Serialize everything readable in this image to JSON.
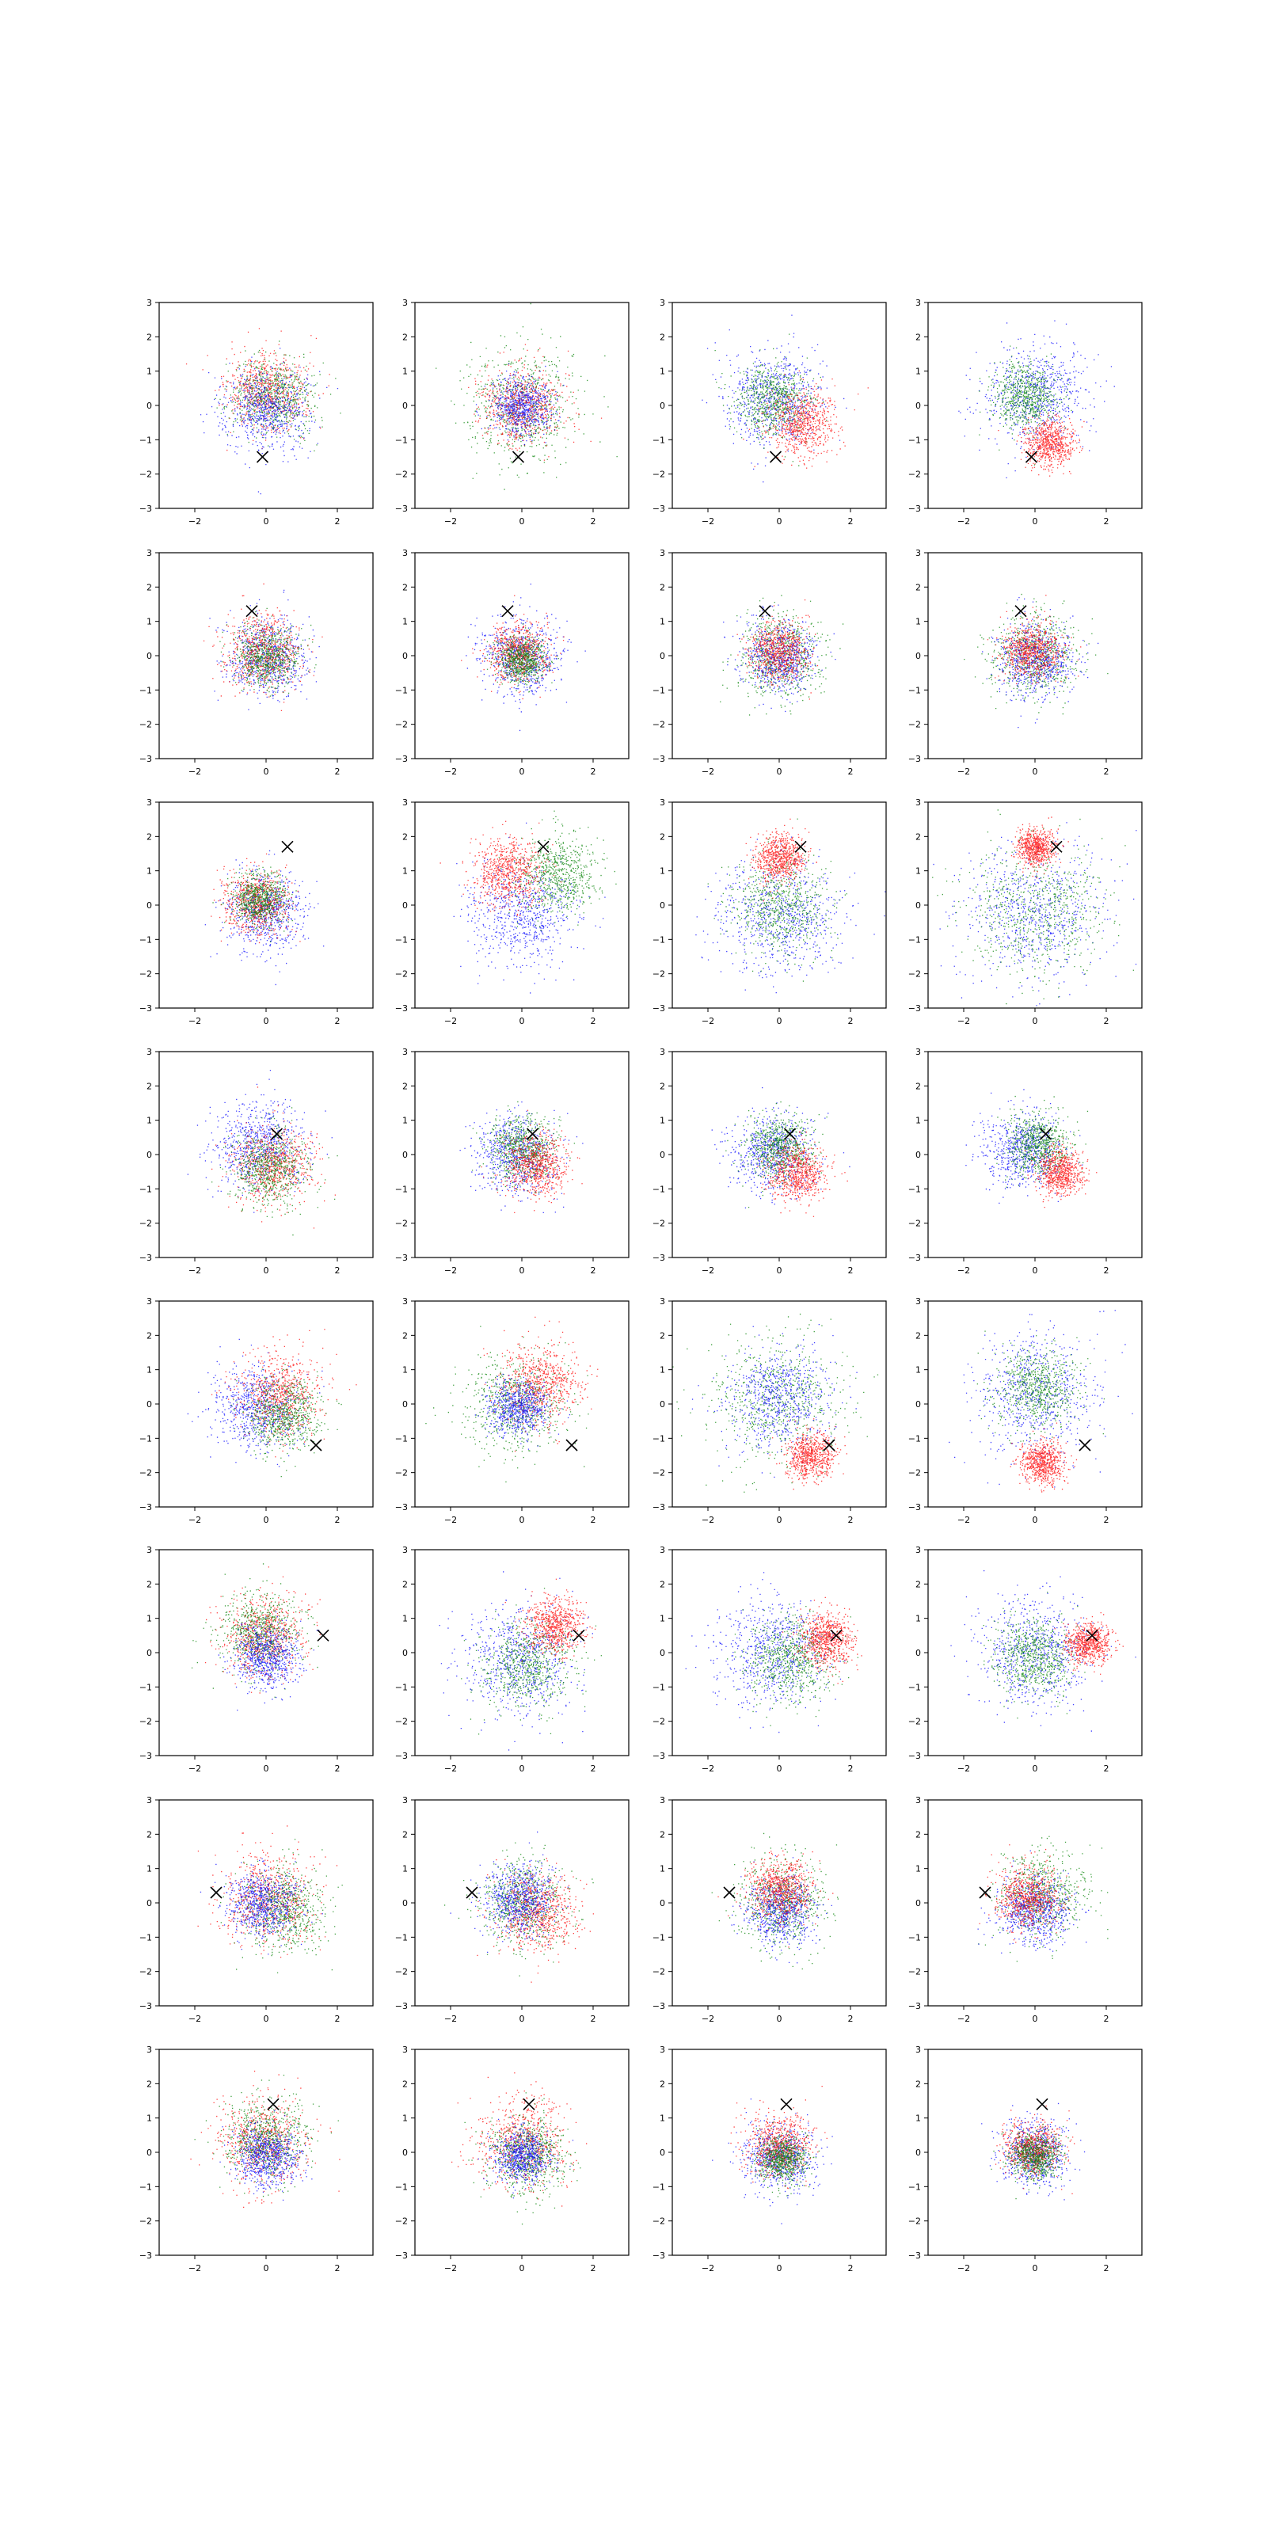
{
  "chart_data": {
    "type": "scatter",
    "layout": {
      "rows": 8,
      "cols": 4
    },
    "xlim": [
      -3,
      3
    ],
    "ylim": [
      -3,
      3
    ],
    "x_ticks": [
      -2,
      0,
      2
    ],
    "y_ticks": [
      -3,
      -2,
      -1,
      0,
      1,
      2,
      3
    ],
    "x_tick_labels": [
      "−2",
      "0",
      "2"
    ],
    "y_tick_labels": [
      "−3",
      "−2",
      "−1",
      "0",
      "1",
      "2",
      "3"
    ],
    "grid": false,
    "colors": {
      "red": "#ff0000",
      "green": "#008000",
      "blue": "#0000ff",
      "marker": "#000000"
    },
    "marker_symbol": "x",
    "rows": [
      {
        "marker": [
          -0.1,
          -1.5
        ],
        "panels": [
          {
            "clusters": [
              {
                "color": "red",
                "cx": 0.0,
                "cy": 0.4,
                "spread": 0.75
              },
              {
                "color": "green",
                "cx": 0.2,
                "cy": 0.3,
                "spread": 0.75
              },
              {
                "color": "blue",
                "cx": 0.0,
                "cy": -0.1,
                "spread": 0.8
              }
            ]
          },
          {
            "clusters": [
              {
                "color": "green",
                "cx": 0.0,
                "cy": 0.0,
                "spread": 1.05
              },
              {
                "color": "red",
                "cx": 0.0,
                "cy": 0.0,
                "spread": 0.75
              },
              {
                "color": "blue",
                "cx": 0.0,
                "cy": 0.0,
                "spread": 0.55
              }
            ]
          },
          {
            "clusters": [
              {
                "color": "blue",
                "cx": -0.2,
                "cy": 0.2,
                "spread": 0.9
              },
              {
                "color": "green",
                "cx": -0.2,
                "cy": 0.2,
                "spread": 0.7
              },
              {
                "color": "red",
                "cx": 0.6,
                "cy": -0.5,
                "spread": 0.65
              }
            ]
          },
          {
            "clusters": [
              {
                "color": "blue",
                "cx": 0.0,
                "cy": 0.3,
                "spread": 0.95
              },
              {
                "color": "green",
                "cx": -0.3,
                "cy": 0.3,
                "spread": 0.6
              },
              {
                "color": "red",
                "cx": 0.4,
                "cy": -1.1,
                "spread": 0.45
              }
            ]
          }
        ]
      },
      {
        "marker": [
          -0.4,
          1.3
        ],
        "panels": [
          {
            "clusters": [
              {
                "color": "blue",
                "cx": 0.0,
                "cy": 0.0,
                "spread": 0.75
              },
              {
                "color": "red",
                "cx": -0.1,
                "cy": 0.1,
                "spread": 0.7
              },
              {
                "color": "green",
                "cx": 0.0,
                "cy": 0.0,
                "spread": 0.6
              }
            ]
          },
          {
            "clusters": [
              {
                "color": "blue",
                "cx": 0.0,
                "cy": 0.0,
                "spread": 0.75
              },
              {
                "color": "red",
                "cx": -0.1,
                "cy": 0.1,
                "spread": 0.55
              },
              {
                "color": "green",
                "cx": 0.0,
                "cy": -0.1,
                "spread": 0.45
              }
            ]
          },
          {
            "clusters": [
              {
                "color": "green",
                "cx": 0.0,
                "cy": 0.0,
                "spread": 0.8
              },
              {
                "color": "blue",
                "cx": 0.0,
                "cy": 0.0,
                "spread": 0.7
              },
              {
                "color": "red",
                "cx": 0.0,
                "cy": 0.1,
                "spread": 0.55
              }
            ]
          },
          {
            "clusters": [
              {
                "color": "green",
                "cx": 0.0,
                "cy": 0.0,
                "spread": 0.8
              },
              {
                "color": "blue",
                "cx": 0.0,
                "cy": -0.1,
                "spread": 0.75
              },
              {
                "color": "red",
                "cx": -0.1,
                "cy": 0.2,
                "spread": 0.55
              }
            ]
          }
        ]
      },
      {
        "marker": [
          0.6,
          1.7
        ],
        "panels": [
          {
            "clusters": [
              {
                "color": "blue",
                "cx": 0.0,
                "cy": -0.2,
                "spread": 0.75
              },
              {
                "color": "red",
                "cx": -0.3,
                "cy": 0.1,
                "spread": 0.6
              },
              {
                "color": "green",
                "cx": -0.2,
                "cy": 0.2,
                "spread": 0.5
              }
            ]
          },
          {
            "clusters": [
              {
                "color": "blue",
                "cx": 0.0,
                "cy": -0.3,
                "spread": 1.0
              },
              {
                "color": "green",
                "cx": 1.0,
                "cy": 0.9,
                "spread": 0.75
              },
              {
                "color": "red",
                "cx": -0.4,
                "cy": 1.0,
                "spread": 0.65
              }
            ]
          },
          {
            "clusters": [
              {
                "color": "blue",
                "cx": 0.0,
                "cy": -0.3,
                "spread": 1.15
              },
              {
                "color": "green",
                "cx": 0.0,
                "cy": 0.0,
                "spread": 0.9
              },
              {
                "color": "red",
                "cx": 0.0,
                "cy": 1.4,
                "spread": 0.45
              }
            ]
          },
          {
            "clusters": [
              {
                "color": "blue",
                "cx": 0.0,
                "cy": -0.2,
                "spread": 1.35
              },
              {
                "color": "green",
                "cx": 0.0,
                "cy": -0.2,
                "spread": 1.3
              },
              {
                "color": "red",
                "cx": 0.0,
                "cy": 1.7,
                "spread": 0.35
              }
            ]
          }
        ]
      },
      {
        "marker": [
          0.3,
          0.6
        ],
        "panels": [
          {
            "clusters": [
              {
                "color": "blue",
                "cx": -0.2,
                "cy": 0.3,
                "spread": 0.85
              },
              {
                "color": "red",
                "cx": 0.2,
                "cy": -0.3,
                "spread": 0.75
              },
              {
                "color": "green",
                "cx": 0.1,
                "cy": -0.4,
                "spread": 0.7
              }
            ]
          },
          {
            "clusters": [
              {
                "color": "blue",
                "cx": -0.2,
                "cy": 0.0,
                "spread": 0.75
              },
              {
                "color": "green",
                "cx": 0.0,
                "cy": 0.2,
                "spread": 0.65
              },
              {
                "color": "red",
                "cx": 0.4,
                "cy": -0.3,
                "spread": 0.6
              }
            ]
          },
          {
            "clusters": [
              {
                "color": "blue",
                "cx": -0.2,
                "cy": 0.1,
                "spread": 0.75
              },
              {
                "color": "green",
                "cx": 0.0,
                "cy": 0.2,
                "spread": 0.6
              },
              {
                "color": "red",
                "cx": 0.5,
                "cy": -0.5,
                "spread": 0.55
              }
            ]
          },
          {
            "clusters": [
              {
                "color": "blue",
                "cx": -0.3,
                "cy": 0.1,
                "spread": 0.7
              },
              {
                "color": "green",
                "cx": 0.1,
                "cy": 0.3,
                "spread": 0.6
              },
              {
                "color": "red",
                "cx": 0.7,
                "cy": -0.5,
                "spread": 0.45
              }
            ]
          }
        ]
      },
      {
        "marker": [
          1.4,
          -1.2
        ],
        "panels": [
          {
            "clusters": [
              {
                "color": "blue",
                "cx": -0.3,
                "cy": -0.1,
                "spread": 0.85
              },
              {
                "color": "red",
                "cx": 0.4,
                "cy": 0.3,
                "spread": 0.8
              },
              {
                "color": "green",
                "cx": 0.5,
                "cy": -0.3,
                "spread": 0.7
              }
            ]
          },
          {
            "clusters": [
              {
                "color": "green",
                "cx": -0.2,
                "cy": 0.0,
                "spread": 0.95
              },
              {
                "color": "red",
                "cx": 0.5,
                "cy": 0.6,
                "spread": 0.75
              },
              {
                "color": "blue",
                "cx": -0.1,
                "cy": -0.1,
                "spread": 0.55
              }
            ]
          },
          {
            "clusters": [
              {
                "color": "green",
                "cx": 0.0,
                "cy": 0.2,
                "spread": 1.25
              },
              {
                "color": "blue",
                "cx": 0.0,
                "cy": 0.2,
                "spread": 0.95
              },
              {
                "color": "red",
                "cx": 0.9,
                "cy": -1.5,
                "spread": 0.45
              }
            ]
          },
          {
            "clusters": [
              {
                "color": "blue",
                "cx": 0.0,
                "cy": 0.3,
                "spread": 1.2
              },
              {
                "color": "green",
                "cx": 0.0,
                "cy": 0.5,
                "spread": 0.75
              },
              {
                "color": "red",
                "cx": 0.2,
                "cy": -1.7,
                "spread": 0.4
              }
            ]
          }
        ]
      },
      {
        "marker": [
          1.6,
          0.5
        ],
        "panels": [
          {
            "clusters": [
              {
                "color": "red",
                "cx": -0.1,
                "cy": 0.5,
                "spread": 0.8
              },
              {
                "color": "green",
                "cx": -0.2,
                "cy": 0.6,
                "spread": 0.75
              },
              {
                "color": "blue",
                "cx": 0.0,
                "cy": -0.1,
                "spread": 0.6
              }
            ]
          },
          {
            "clusters": [
              {
                "color": "blue",
                "cx": -0.1,
                "cy": -0.2,
                "spread": 1.0
              },
              {
                "color": "green",
                "cx": 0.2,
                "cy": -0.3,
                "spread": 0.85
              },
              {
                "color": "red",
                "cx": 0.9,
                "cy": 0.8,
                "spread": 0.55
              }
            ]
          },
          {
            "clusters": [
              {
                "color": "blue",
                "cx": -0.2,
                "cy": 0.0,
                "spread": 1.05
              },
              {
                "color": "green",
                "cx": 0.3,
                "cy": -0.2,
                "spread": 0.8
              },
              {
                "color": "red",
                "cx": 1.3,
                "cy": 0.4,
                "spread": 0.5
              }
            ]
          },
          {
            "clusters": [
              {
                "color": "blue",
                "cx": 0.0,
                "cy": 0.0,
                "spread": 1.1
              },
              {
                "color": "green",
                "cx": 0.0,
                "cy": -0.1,
                "spread": 0.75
              },
              {
                "color": "red",
                "cx": 1.5,
                "cy": 0.3,
                "spread": 0.4
              }
            ]
          }
        ]
      },
      {
        "marker": [
          -1.4,
          0.3
        ],
        "panels": [
          {
            "clusters": [
              {
                "color": "red",
                "cx": 0.0,
                "cy": 0.1,
                "spread": 0.85
              },
              {
                "color": "green",
                "cx": 0.5,
                "cy": -0.2,
                "spread": 0.8
              },
              {
                "color": "blue",
                "cx": -0.1,
                "cy": 0.0,
                "spread": 0.65
              }
            ]
          },
          {
            "clusters": [
              {
                "color": "green",
                "cx": 0.0,
                "cy": 0.0,
                "spread": 0.8
              },
              {
                "color": "red",
                "cx": 0.4,
                "cy": -0.3,
                "spread": 0.75
              },
              {
                "color": "blue",
                "cx": -0.1,
                "cy": 0.1,
                "spread": 0.65
              }
            ]
          },
          {
            "clusters": [
              {
                "color": "green",
                "cx": 0.1,
                "cy": 0.0,
                "spread": 0.8
              },
              {
                "color": "blue",
                "cx": 0.0,
                "cy": -0.2,
                "spread": 0.65
              },
              {
                "color": "red",
                "cx": 0.0,
                "cy": 0.4,
                "spread": 0.6
              }
            ]
          },
          {
            "clusters": [
              {
                "color": "green",
                "cx": 0.2,
                "cy": 0.2,
                "spread": 0.8
              },
              {
                "color": "blue",
                "cx": 0.0,
                "cy": -0.2,
                "spread": 0.65
              },
              {
                "color": "red",
                "cx": -0.2,
                "cy": 0.2,
                "spread": 0.6
              }
            ]
          }
        ]
      },
      {
        "marker": [
          0.2,
          1.4
        ],
        "panels": [
          {
            "clusters": [
              {
                "color": "red",
                "cx": -0.1,
                "cy": 0.3,
                "spread": 0.8
              },
              {
                "color": "green",
                "cx": 0.0,
                "cy": 0.4,
                "spread": 0.75
              },
              {
                "color": "blue",
                "cx": 0.0,
                "cy": -0.1,
                "spread": 0.6
              }
            ]
          },
          {
            "clusters": [
              {
                "color": "red",
                "cx": 0.0,
                "cy": 0.3,
                "spread": 0.85
              },
              {
                "color": "green",
                "cx": 0.1,
                "cy": -0.1,
                "spread": 0.75
              },
              {
                "color": "blue",
                "cx": 0.0,
                "cy": -0.1,
                "spread": 0.5
              }
            ]
          },
          {
            "clusters": [
              {
                "color": "blue",
                "cx": 0.0,
                "cy": -0.1,
                "spread": 0.65
              },
              {
                "color": "red",
                "cx": 0.0,
                "cy": 0.2,
                "spread": 0.6
              },
              {
                "color": "green",
                "cx": 0.1,
                "cy": -0.2,
                "spread": 0.45
              }
            ]
          },
          {
            "clusters": [
              {
                "color": "blue",
                "cx": 0.0,
                "cy": 0.0,
                "spread": 0.6
              },
              {
                "color": "red",
                "cx": -0.1,
                "cy": 0.1,
                "spread": 0.5
              },
              {
                "color": "green",
                "cx": 0.0,
                "cy": -0.1,
                "spread": 0.45
              }
            ]
          }
        ]
      }
    ]
  }
}
